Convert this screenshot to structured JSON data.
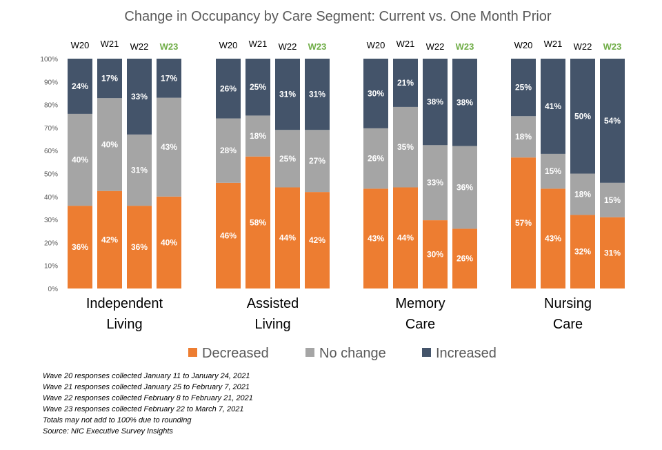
{
  "chart_data": {
    "type": "bar",
    "stacked": true,
    "percent_stacked": true,
    "title": "Change in Occupancy by Care Segment: Current vs. One Month Prior",
    "y_ticks": [
      "0%",
      "10%",
      "20%",
      "30%",
      "40%",
      "50%",
      "60%",
      "70%",
      "80%",
      "90%",
      "100%"
    ],
    "ylim": [
      0,
      100
    ],
    "grid": false,
    "legend_position": "bottom",
    "current_wave": "W23",
    "current_wave_color": "#70ad47",
    "series": [
      {
        "name": "Decreased",
        "color": "#ed7d31"
      },
      {
        "name": "No change",
        "color": "#a5a5a5"
      },
      {
        "name": "Increased",
        "color": "#44546a"
      }
    ],
    "groups": [
      {
        "label_lines": [
          "Independent",
          "Living"
        ],
        "bars": [
          {
            "wave": "W20",
            "values": [
              36,
              40,
              24
            ],
            "labels": [
              "36%",
              "40%",
              "24%"
            ]
          },
          {
            "wave": "W21",
            "values": [
              42,
              40,
              17
            ],
            "labels": [
              "42%",
              "40%",
              "17%"
            ]
          },
          {
            "wave": "W22",
            "values": [
              36,
              31,
              33
            ],
            "labels": [
              "36%",
              "31%",
              "33%"
            ]
          },
          {
            "wave": "W23",
            "values": [
              40,
              43,
              17
            ],
            "labels": [
              "40%",
              "43%",
              "17%"
            ]
          }
        ]
      },
      {
        "label_lines": [
          "Assisted",
          "Living"
        ],
        "bars": [
          {
            "wave": "W20",
            "values": [
              46,
              28,
              26
            ],
            "labels": [
              "46%",
              "28%",
              "26%"
            ]
          },
          {
            "wave": "W21",
            "values": [
              58,
              18,
              25
            ],
            "labels": [
              "58%",
              "18%",
              "25%"
            ]
          },
          {
            "wave": "W22",
            "values": [
              44,
              25,
              31
            ],
            "labels": [
              "44%",
              "25%",
              "31%"
            ]
          },
          {
            "wave": "W23",
            "values": [
              42,
              27,
              31
            ],
            "labels": [
              "42%",
              "27%",
              "31%"
            ]
          }
        ]
      },
      {
        "label_lines": [
          "Memory",
          "Care"
        ],
        "bars": [
          {
            "wave": "W20",
            "values": [
              43,
              26,
              30
            ],
            "labels": [
              "43%",
              "26%",
              "30%"
            ]
          },
          {
            "wave": "W21",
            "values": [
              44,
              35,
              21
            ],
            "labels": [
              "44%",
              "35%",
              "21%"
            ]
          },
          {
            "wave": "W22",
            "values": [
              30,
              33,
              38
            ],
            "labels": [
              "30%",
              "33%",
              "38%"
            ]
          },
          {
            "wave": "W23",
            "values": [
              26,
              36,
              38
            ],
            "labels": [
              "26%",
              "36%",
              "38%"
            ]
          }
        ]
      },
      {
        "label_lines": [
          "Nursing",
          "Care"
        ],
        "bars": [
          {
            "wave": "W20",
            "values": [
              57,
              18,
              25
            ],
            "labels": [
              "57%",
              "18%",
              "25%"
            ]
          },
          {
            "wave": "W21",
            "values": [
              43,
              15,
              41
            ],
            "labels": [
              "43%",
              "15%",
              "41%"
            ]
          },
          {
            "wave": "W22",
            "values": [
              32,
              18,
              50
            ],
            "labels": [
              "32%",
              "18%",
              "50%"
            ]
          },
          {
            "wave": "W23",
            "values": [
              31,
              15,
              54
            ],
            "labels": [
              "31%",
              "15%",
              "54%"
            ]
          }
        ]
      }
    ]
  },
  "footnotes": [
    "Wave 20 responses collected January 11 to January 24, 2021",
    "Wave 21 responses collected January 25 to February 7, 2021",
    "Wave 22 responses collected February 8 to February 21, 2021",
    "Wave 23 responses collected February 22 to March 7, 2021",
    "Totals may not add to 100% due to rounding",
    "Source: NIC Executive Survey Insights"
  ]
}
